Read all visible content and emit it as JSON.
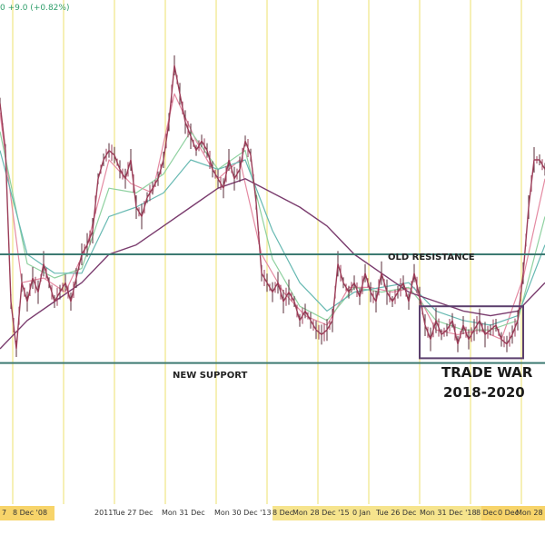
{
  "header_text": "0 +9.0 (+0.82%)",
  "colors": {
    "gridline": "#f3ec9d",
    "level_line": "#3d7a72",
    "price_line": "#9b3d58",
    "candle_dark": "#5a2d3a",
    "ma_fast": "#e48aa2",
    "ma_green": "#8fd1a0",
    "ma_teal": "#67b9b2",
    "ma_purple": "#7a3c6e",
    "box": "#5b3f6d",
    "xaxis_highlight": "#f7d46a"
  },
  "annotations": {
    "old_resistance": "OLD RESISTANCE",
    "new_support": "NEW SUPPORT",
    "trade_war_line1": "TRADE WAR",
    "trade_war_line2": "2018-2020"
  },
  "x_axis_labels": [
    "7",
    "8 Dec '08",
    "2011",
    "Tue 27 Dec",
    "Mon 31 Dec",
    "Mon 30 Dec '13",
    "8 Dec",
    "Mon 28 Dec '15",
    "0 Jan",
    "Tue 26 Dec",
    "Mon 31 Dec '18",
    "8 Dec",
    "0 Dec",
    "Mon 28 Dec"
  ],
  "chart_data": {
    "type": "line",
    "title": "",
    "xlabel": "",
    "ylabel": "",
    "x_range": [
      0,
      100
    ],
    "ylim": [
      0,
      100
    ],
    "grid": true,
    "levels": [
      {
        "label": "OLD RESISTANCE",
        "y": 50
      },
      {
        "label": "NEW SUPPORT",
        "y": 27
      }
    ],
    "highlight_box": {
      "label": "TRADE WAR 2018-2020",
      "x_range": [
        77,
        96
      ],
      "y_range": [
        28,
        39
      ]
    },
    "series": [
      {
        "style": "price",
        "x": [
          0,
          1,
          2,
          3,
          4,
          5,
          6,
          7,
          8,
          9,
          10,
          11,
          12,
          13,
          14,
          15,
          16,
          17,
          18,
          19,
          20,
          21,
          22,
          23,
          24,
          25,
          26,
          27,
          28,
          29,
          30,
          31,
          32,
          33,
          34,
          35,
          36,
          37,
          38,
          39,
          40,
          41,
          42,
          43,
          44,
          45,
          46,
          47,
          48,
          49,
          50,
          51,
          52,
          53,
          54,
          55,
          56,
          57,
          58,
          59,
          60,
          61,
          62,
          63,
          64,
          65,
          66,
          67,
          68,
          69,
          70,
          71,
          72,
          73,
          74,
          75,
          76,
          77,
          78,
          79,
          80,
          81,
          82,
          83,
          84,
          85,
          86,
          87,
          88,
          89,
          90,
          91,
          92,
          93,
          94,
          95,
          96,
          97,
          98,
          99,
          100
        ],
        "y": [
          82,
          72,
          40,
          30,
          44,
          40,
          45,
          42,
          48,
          44,
          40,
          42,
          44,
          40,
          45,
          50,
          52,
          55,
          66,
          70,
          72,
          71,
          68,
          66,
          70,
          60,
          58,
          62,
          64,
          66,
          70,
          78,
          90,
          84,
          78,
          75,
          72,
          74,
          72,
          68,
          66,
          64,
          70,
          66,
          68,
          74,
          71,
          61,
          46,
          44,
          42,
          44,
          40,
          42,
          40,
          36,
          38,
          36,
          34,
          33,
          34,
          36,
          48,
          44,
          42,
          44,
          41,
          46,
          42,
          40,
          46,
          42,
          40,
          42,
          44,
          40,
          46,
          41,
          35,
          32,
          36,
          33,
          34,
          36,
          31,
          35,
          32,
          34,
          36,
          33,
          34,
          35,
          32,
          31,
          33,
          36,
          46,
          60,
          70,
          70,
          68
        ]
      },
      {
        "style": "ma_fast",
        "x": [
          0,
          4,
          8,
          12,
          16,
          20,
          24,
          28,
          32,
          36,
          40,
          44,
          48,
          52,
          56,
          60,
          64,
          68,
          72,
          76,
          80,
          84,
          88,
          92,
          96,
          100
        ],
        "y": [
          80,
          44,
          45,
          42,
          52,
          70,
          65,
          63,
          84,
          74,
          66,
          70,
          50,
          42,
          37,
          35,
          43,
          43,
          42,
          43,
          34,
          33,
          34,
          32,
          45,
          66
        ]
      },
      {
        "style": "ma_green",
        "x": [
          0,
          5,
          10,
          15,
          20,
          25,
          30,
          35,
          40,
          45,
          50,
          55,
          60,
          65,
          70,
          75,
          80,
          85,
          90,
          95,
          100
        ],
        "y": [
          76,
          48,
          45,
          47,
          64,
          63,
          67,
          76,
          68,
          72,
          49,
          39,
          36,
          43,
          42,
          43,
          36,
          34,
          34,
          36,
          58
        ]
      },
      {
        "style": "ma_teal",
        "x": [
          0,
          5,
          10,
          15,
          20,
          25,
          30,
          35,
          40,
          45,
          50,
          55,
          60,
          65,
          70,
          75,
          80,
          85,
          90,
          95,
          100
        ],
        "y": [
          72,
          50,
          46,
          46,
          58,
          60,
          63,
          70,
          68,
          70,
          55,
          44,
          38,
          42,
          43,
          44,
          38,
          36,
          35,
          37,
          52
        ]
      },
      {
        "style": "ma_purple",
        "x": [
          0,
          5,
          10,
          15,
          20,
          25,
          30,
          35,
          40,
          45,
          50,
          55,
          60,
          65,
          70,
          75,
          80,
          85,
          90,
          95,
          100
        ],
        "y": [
          30,
          36,
          40,
          44,
          50,
          52,
          56,
          60,
          64,
          66,
          63,
          60,
          56,
          50,
          46,
          42,
          40,
          38,
          37,
          38,
          44
        ]
      }
    ]
  }
}
